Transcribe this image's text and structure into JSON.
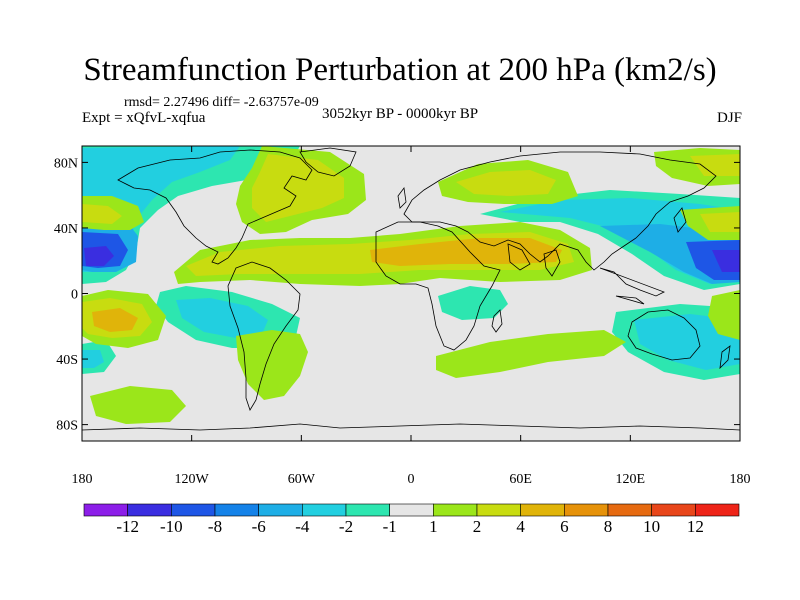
{
  "title": "Streamfunction Perturbation at 200 hPa (km2/s)",
  "stats_text": "rmsd= 2.27496 diff= -2.63757e-09",
  "experiment_text": "Expt = xQfvL-xqfua",
  "period_text": "3052kyr BP - 0000kyr BP",
  "season_text": "DJF",
  "lat_ticks": [
    {
      "label": "80N",
      "lat": 80
    },
    {
      "label": "40N",
      "lat": 40
    },
    {
      "label": "0",
      "lat": 0
    },
    {
      "label": "40S",
      "lat": -40
    },
    {
      "label": "80S",
      "lat": -80
    }
  ],
  "lon_ticks": [
    {
      "label": "180",
      "lon": -180
    },
    {
      "label": "120W",
      "lon": -120
    },
    {
      "label": "60W",
      "lon": -60
    },
    {
      "label": "0",
      "lon": 0
    },
    {
      "label": "60E",
      "lon": 60
    },
    {
      "label": "120E",
      "lon": 120
    },
    {
      "label": "180",
      "lon": 180
    }
  ],
  "colorbar": {
    "labels": [
      "-12",
      "-10",
      "-8",
      "-6",
      "-4",
      "-2",
      "-1",
      "1",
      "2",
      "4",
      "6",
      "8",
      "10",
      "12"
    ],
    "colors": [
      "#8c1ee8",
      "#3a2ee0",
      "#1e56e6",
      "#1482e8",
      "#1eaee6",
      "#22cfe0",
      "#2de6b0",
      "#e6e6e6",
      "#9be61a",
      "#c8dc10",
      "#e0b40a",
      "#e6920a",
      "#e66a10",
      "#e8461a",
      "#ee2418"
    ]
  },
  "fill_colors": {
    "background": "#e6e6e6",
    "neg_weak": "#2de6b0",
    "neg_mid": "#22cfe0",
    "neg_strong": "#1eaee6",
    "neg_deep": "#1e56e6",
    "neg_max": "#3a2ee0",
    "pos_weak": "#9be61a",
    "pos_mid": "#c8dc10",
    "pos_strong": "#e0b40a"
  }
}
